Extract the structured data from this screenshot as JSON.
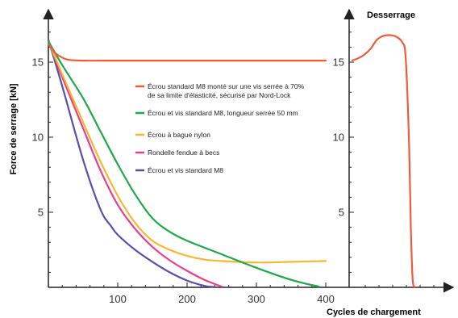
{
  "chart_data": {
    "type": "line",
    "ylabel": "Force de serrage  [kN]",
    "xlabel": "Cycles de chargement",
    "right_panel_title": "Desserrage",
    "xlim": [
      0,
      400
    ],
    "ylim": [
      0,
      18
    ],
    "x_ticks": [
      100,
      200,
      300,
      400
    ],
    "y_ticks": [
      5,
      10,
      15
    ],
    "grid": false,
    "legend_position": "center",
    "series": [
      {
        "name": "Écrou standard M8 monté sur une vis serrée à 70% de sa limite d'élasticité, sécurisé par Nord-Lock",
        "legend_lines": [
          "Écrou standard M8 monté sur une vis serrée à 70%",
          "de sa limite d'élasticité, sécurisé par Nord-Lock"
        ],
        "color": "#f05a3c",
        "x": [
          0,
          5,
          10,
          20,
          30,
          50,
          100,
          200,
          300,
          400
        ],
        "y": [
          16.2,
          15.9,
          15.6,
          15.3,
          15.15,
          15.1,
          15.1,
          15.1,
          15.1,
          15.1
        ]
      },
      {
        "name": "Écrou et vis standard M8, longueur serrée 50 mm",
        "legend_lines": [
          "Écrou et vis standard M8, longueur serrée 50 mm"
        ],
        "color": "#1fa84a",
        "x": [
          0,
          20,
          50,
          75,
          100,
          125,
          150,
          175,
          200,
          250,
          300,
          350,
          390
        ],
        "y": [
          16.4,
          14.8,
          12.6,
          10.4,
          8.2,
          6.2,
          4.6,
          3.7,
          3.1,
          2.2,
          1.3,
          0.5,
          0.05
        ]
      },
      {
        "name": "Écrou à bague nylon",
        "legend_lines": [
          "Écrou à bague nylon"
        ],
        "color": "#f7b731",
        "x": [
          0,
          20,
          50,
          75,
          100,
          125,
          150,
          175,
          200,
          225,
          250,
          300,
          350,
          400
        ],
        "y": [
          16.4,
          14.2,
          11.0,
          8.4,
          6.1,
          4.3,
          3.1,
          2.5,
          2.1,
          1.85,
          1.75,
          1.65,
          1.7,
          1.75
        ]
      },
      {
        "name": "Rondelle fendue à becs",
        "legend_lines": [
          "Rondelle fendue à becs"
        ],
        "color": "#e8408c",
        "x": [
          0,
          20,
          50,
          75,
          100,
          125,
          150,
          175,
          200,
          225,
          250
        ],
        "y": [
          16.4,
          14.0,
          10.6,
          7.8,
          5.5,
          3.9,
          2.7,
          1.8,
          1.1,
          0.5,
          0.05
        ]
      },
      {
        "name": "Écrou et vis standard M8",
        "legend_lines": [
          "Écrou et vis standard M8"
        ],
        "color": "#5a4fa8",
        "x": [
          0,
          20,
          50,
          75,
          90,
          100,
          125,
          150,
          175,
          200,
          225,
          240
        ],
        "y": [
          16.5,
          13.4,
          8.5,
          5.2,
          4.1,
          3.5,
          2.5,
          1.7,
          1.0,
          0.45,
          0.1,
          0.02
        ]
      }
    ],
    "right_panel": {
      "title": "Desserrage",
      "y_ticks": [
        5,
        10,
        15
      ],
      "series": [
        {
          "color": "#f05a3c",
          "x": [
            0,
            0.1,
            0.2,
            0.3,
            0.4,
            0.5,
            0.6,
            0.7,
            0.8,
            0.85,
            0.9,
            0.93,
            0.96,
            1.0
          ],
          "y": [
            15.1,
            15.25,
            15.5,
            15.9,
            16.5,
            16.75,
            16.8,
            16.7,
            16.3,
            15.3,
            10.0,
            4.0,
            0.5,
            0.0
          ]
        }
      ]
    }
  }
}
